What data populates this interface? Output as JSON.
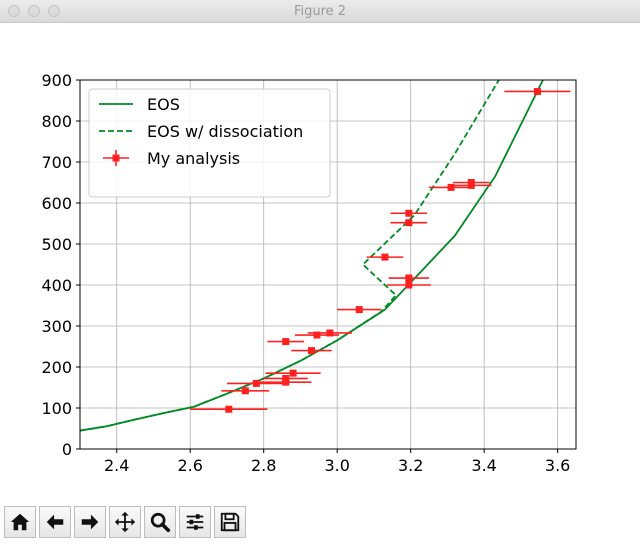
{
  "window": {
    "title": "Figure 2"
  },
  "toolbar": {
    "buttons": [
      {
        "name": "home-icon"
      },
      {
        "name": "back-icon"
      },
      {
        "name": "forward-icon"
      },
      {
        "name": "pan-icon"
      },
      {
        "name": "zoom-icon"
      },
      {
        "name": "configure-subplots-icon"
      },
      {
        "name": "save-icon"
      }
    ]
  },
  "chart_data": {
    "type": "line",
    "title": "",
    "xlabel": "",
    "ylabel": "",
    "xlim": [
      2.3,
      3.65
    ],
    "ylim": [
      0,
      900
    ],
    "xticks": [
      2.4,
      2.6,
      2.8,
      3.0,
      3.2,
      3.4,
      3.6
    ],
    "xtick_labels": [
      "2.4",
      "2.6",
      "2.8",
      "3.0",
      "3.2",
      "3.4",
      "3.6"
    ],
    "yticks": [
      0,
      100,
      200,
      300,
      400,
      500,
      600,
      700,
      800,
      900
    ],
    "ytick_labels": [
      "0",
      "100",
      "200",
      "300",
      "400",
      "500",
      "600",
      "700",
      "800",
      "900"
    ],
    "grid": true,
    "legend_position": "top-left",
    "colors": {
      "eos": "#008a25",
      "analysis": "#ff2020",
      "grid": "#b0b0b0"
    },
    "series": [
      {
        "name": "EOS",
        "style": "solid",
        "x": [
          2.3,
          2.37,
          2.45,
          2.53,
          2.61,
          2.7,
          2.8,
          2.9,
          3.0,
          3.13,
          3.22,
          3.32,
          3.43,
          3.56
        ],
        "y": [
          45,
          55,
          72,
          88,
          103,
          135,
          172,
          215,
          265,
          340,
          425,
          520,
          665,
          900
        ]
      },
      {
        "name": "EOS w/ dissociation",
        "style": "dashed",
        "x": [
          2.3,
          2.37,
          2.45,
          2.53,
          2.61,
          2.7,
          2.8,
          2.9,
          3.0,
          3.12,
          3.16,
          3.07,
          3.21,
          3.32,
          3.44
        ],
        "y": [
          45,
          55,
          72,
          88,
          103,
          135,
          172,
          215,
          265,
          335,
          375,
          450,
          570,
          720,
          900
        ]
      },
      {
        "name": "My analysis",
        "style": "errorbar",
        "points": [
          {
            "x": 2.705,
            "y": 97,
            "xerr": 0.105,
            "yerr": 5
          },
          {
            "x": 2.75,
            "y": 142,
            "xerr": 0.065,
            "yerr": 5
          },
          {
            "x": 2.78,
            "y": 160,
            "xerr": 0.08,
            "yerr": 5
          },
          {
            "x": 2.86,
            "y": 163,
            "xerr": 0.07,
            "yerr": 5
          },
          {
            "x": 2.86,
            "y": 172,
            "xerr": 0.06,
            "yerr": 5
          },
          {
            "x": 2.88,
            "y": 185,
            "xerr": 0.075,
            "yerr": 5
          },
          {
            "x": 2.86,
            "y": 262,
            "xerr": 0.05,
            "yerr": 5
          },
          {
            "x": 2.93,
            "y": 240,
            "xerr": 0.055,
            "yerr": 5
          },
          {
            "x": 2.945,
            "y": 278,
            "xerr": 0.06,
            "yerr": 5
          },
          {
            "x": 2.98,
            "y": 283,
            "xerr": 0.06,
            "yerr": 5
          },
          {
            "x": 3.06,
            "y": 340,
            "xerr": 0.06,
            "yerr": 5
          },
          {
            "x": 3.13,
            "y": 468,
            "xerr": 0.05,
            "yerr": 5
          },
          {
            "x": 3.195,
            "y": 400,
            "xerr": 0.06,
            "yerr": 5
          },
          {
            "x": 3.195,
            "y": 417,
            "xerr": 0.055,
            "yerr": 5
          },
          {
            "x": 3.195,
            "y": 552,
            "xerr": 0.05,
            "yerr": 5
          },
          {
            "x": 3.195,
            "y": 575,
            "xerr": 0.05,
            "yerr": 5
          },
          {
            "x": 3.31,
            "y": 638,
            "xerr": 0.06,
            "yerr": 5
          },
          {
            "x": 3.365,
            "y": 643,
            "xerr": 0.055,
            "yerr": 5
          },
          {
            "x": 3.365,
            "y": 650,
            "xerr": 0.05,
            "yerr": 5
          },
          {
            "x": 3.545,
            "y": 872,
            "xerr": 0.09,
            "yerr": 5
          }
        ]
      }
    ]
  }
}
